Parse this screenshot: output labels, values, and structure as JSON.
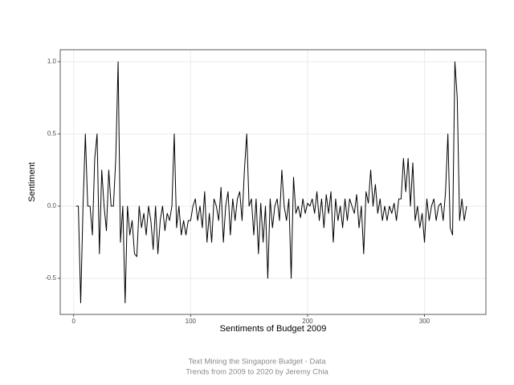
{
  "chart_data": {
    "type": "line",
    "xlabel": "Sentiments of Budget 2009",
    "ylabel": "Sentiment",
    "caption": [
      "Text Mining the Singapore Budget - Data",
      "Trends from 2009 to 2020 by Jeremy Chia"
    ],
    "color": "#000000",
    "grid": true,
    "xlim": [
      -11.5,
      352.5
    ],
    "ylim": [
      -0.75,
      1.083
    ],
    "xticks": [
      0,
      100,
      200,
      300
    ],
    "yticks": [
      {
        "value": -0.5,
        "label": "-0.5"
      },
      {
        "value": 0,
        "label": "0.0"
      },
      {
        "value": 0.5,
        "label": "0.5"
      },
      {
        "value": 1,
        "label": "1.0"
      }
    ],
    "x": [
      2,
      4,
      6,
      8,
      10,
      12,
      14,
      16,
      18,
      20,
      22,
      24,
      26,
      28,
      30,
      32,
      34,
      36,
      38,
      40,
      42,
      44,
      46,
      48,
      50,
      52,
      54,
      56,
      58,
      60,
      62,
      64,
      66,
      68,
      70,
      72,
      74,
      76,
      78,
      80,
      82,
      84,
      86,
      88,
      90,
      92,
      94,
      96,
      98,
      100,
      102,
      104,
      106,
      108,
      110,
      112,
      114,
      116,
      118,
      120,
      122,
      124,
      126,
      128,
      130,
      132,
      134,
      136,
      138,
      140,
      142,
      144,
      146,
      148,
      150,
      152,
      154,
      156,
      158,
      160,
      162,
      164,
      166,
      168,
      170,
      172,
      174,
      176,
      178,
      180,
      182,
      184,
      186,
      188,
      190,
      192,
      194,
      196,
      198,
      200,
      202,
      204,
      206,
      208,
      210,
      212,
      214,
      216,
      218,
      220,
      222,
      224,
      226,
      228,
      230,
      232,
      234,
      236,
      238,
      240,
      242,
      244,
      246,
      248,
      250,
      252,
      254,
      256,
      258,
      260,
      262,
      264,
      266,
      268,
      270,
      272,
      274,
      276,
      278,
      280,
      282,
      284,
      286,
      288,
      290,
      292,
      294,
      296,
      298,
      300,
      302,
      304,
      306,
      308,
      310,
      312,
      314,
      316,
      318,
      320,
      322,
      324,
      326,
      328,
      330,
      332,
      334,
      336
    ],
    "values": [
      0,
      0,
      -0.67,
      0,
      0.5,
      0,
      0,
      -0.2,
      0.33,
      0.5,
      -0.33,
      0.25,
      0,
      -0.17,
      0.25,
      0,
      0,
      0.33,
      1,
      -0.25,
      0,
      -0.67,
      0,
      -0.2,
      -0.1,
      -0.33,
      -0.35,
      0,
      -0.15,
      -0.05,
      -0.2,
      0,
      -0.1,
      -0.3,
      0,
      -0.33,
      -0.1,
      0,
      -0.17,
      -0.05,
      -0.1,
      0,
      0.5,
      -0.15,
      0,
      -0.2,
      -0.1,
      -0.2,
      -0.1,
      -0.1,
      0,
      0.05,
      -0.1,
      0,
      -0.15,
      0.1,
      -0.25,
      -0.05,
      -0.25,
      0.05,
      0,
      -0.1,
      0.13,
      -0.25,
      0,
      0.1,
      -0.2,
      0.05,
      -0.1,
      0.05,
      0.1,
      -0.1,
      0.25,
      0.5,
      0,
      0.05,
      -0.2,
      0.05,
      -0.33,
      0.02,
      -0.25,
      0,
      -0.5,
      0.05,
      -0.15,
      0,
      0.05,
      -0.1,
      0.25,
      0,
      -0.1,
      0.05,
      -0.5,
      0.2,
      -0.05,
      0,
      -0.08,
      0.05,
      -0.05,
      0.02,
      0,
      0.05,
      -0.05,
      0.1,
      -0.1,
      0.05,
      -0.15,
      0.08,
      -0.05,
      0.1,
      -0.25,
      0.05,
      -0.1,
      0,
      -0.15,
      0.05,
      -0.1,
      0.05,
      0,
      -0.05,
      0.08,
      -0.15,
      0,
      -0.33,
      0.1,
      0.02,
      0.25,
      0,
      0.15,
      -0.05,
      0.05,
      -0.1,
      0,
      -0.1,
      0,
      -0.05,
      0.02,
      -0.1,
      0.05,
      0.05,
      0.33,
      0.1,
      0.33,
      0,
      0.3,
      -0.1,
      0,
      -0.15,
      -0.05,
      -0.25,
      0.05,
      -0.1,
      0,
      0.05,
      -0.1,
      0,
      0.02,
      -0.1,
      0.1,
      0.5,
      -0.15,
      -0.2,
      1,
      0.75,
      -0.1,
      0.05,
      -0.1,
      0
    ]
  }
}
